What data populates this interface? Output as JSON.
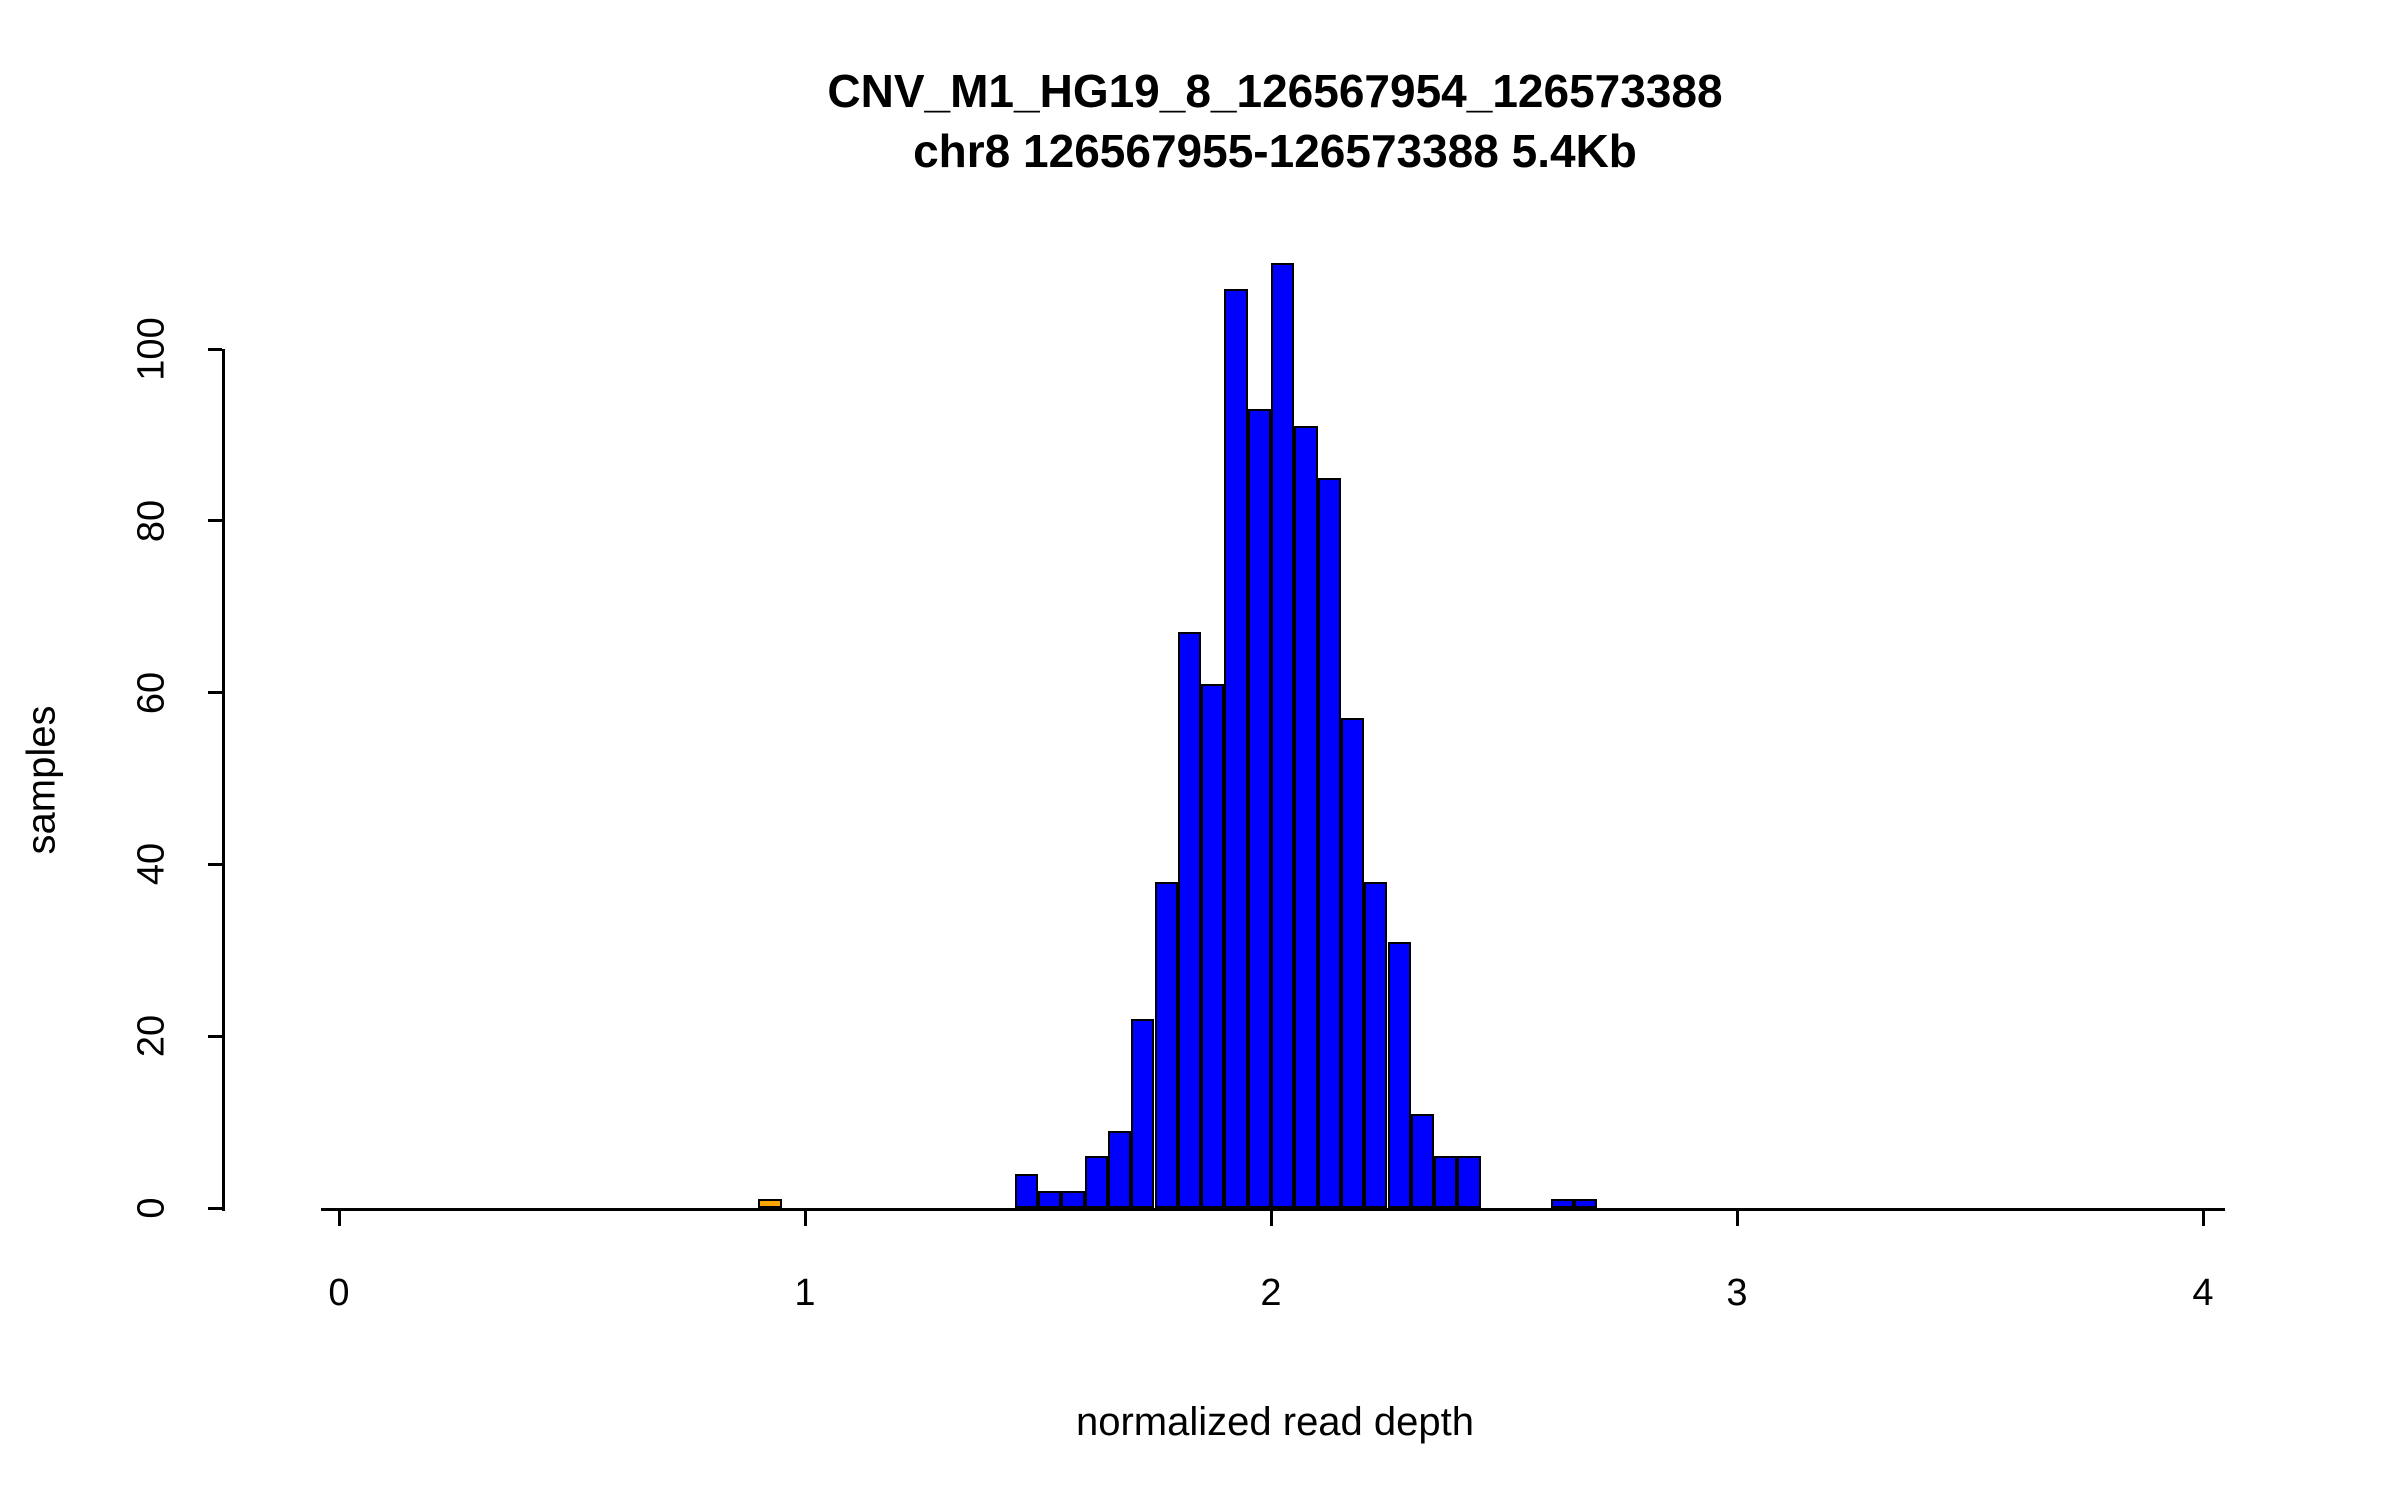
{
  "chart_data": {
    "type": "bar",
    "subtype": "histogram",
    "title": "CNV_M1_HG19_8_126567954_126573388",
    "subtitle": "chr8 126567955-126573388 5.4Kb",
    "xlabel": "normalized read depth",
    "ylabel": "samples",
    "xlim": [
      0,
      4
    ],
    "ylim": [
      0,
      110
    ],
    "x_ticks": [
      0,
      1,
      2,
      3,
      4
    ],
    "y_ticks": [
      0,
      20,
      40,
      60,
      80,
      100
    ],
    "grid": false,
    "legend": "none",
    "bin_width": 0.05,
    "colors": {
      "blue": "#0000FF",
      "orange": "#FFA500",
      "border": "#000000",
      "axis": "#000000",
      "background": "#FFFFFF"
    },
    "bins": [
      {
        "start": 0.9,
        "count": 1,
        "color": "orange"
      },
      {
        "start": 1.45,
        "count": 4,
        "color": "blue"
      },
      {
        "start": 1.5,
        "count": 2,
        "color": "blue"
      },
      {
        "start": 1.55,
        "count": 2,
        "color": "blue"
      },
      {
        "start": 1.6,
        "count": 6,
        "color": "blue"
      },
      {
        "start": 1.65,
        "count": 9,
        "color": "blue"
      },
      {
        "start": 1.7,
        "count": 22,
        "color": "blue"
      },
      {
        "start": 1.75,
        "count": 38,
        "color": "blue"
      },
      {
        "start": 1.8,
        "count": 67,
        "color": "blue"
      },
      {
        "start": 1.85,
        "count": 61,
        "color": "blue"
      },
      {
        "start": 1.9,
        "count": 107,
        "color": "blue"
      },
      {
        "start": 1.95,
        "count": 93,
        "color": "blue"
      },
      {
        "start": 2.0,
        "count": 110,
        "color": "blue"
      },
      {
        "start": 2.05,
        "count": 91,
        "color": "blue"
      },
      {
        "start": 2.1,
        "count": 85,
        "color": "blue"
      },
      {
        "start": 2.15,
        "count": 57,
        "color": "blue"
      },
      {
        "start": 2.2,
        "count": 38,
        "color": "blue"
      },
      {
        "start": 2.25,
        "count": 31,
        "color": "blue"
      },
      {
        "start": 2.3,
        "count": 11,
        "color": "blue"
      },
      {
        "start": 2.35,
        "count": 6,
        "color": "blue"
      },
      {
        "start": 2.4,
        "count": 6,
        "color": "blue"
      },
      {
        "start": 2.6,
        "count": 1,
        "color": "blue"
      },
      {
        "start": 2.65,
        "count": 1,
        "color": "blue"
      }
    ]
  }
}
